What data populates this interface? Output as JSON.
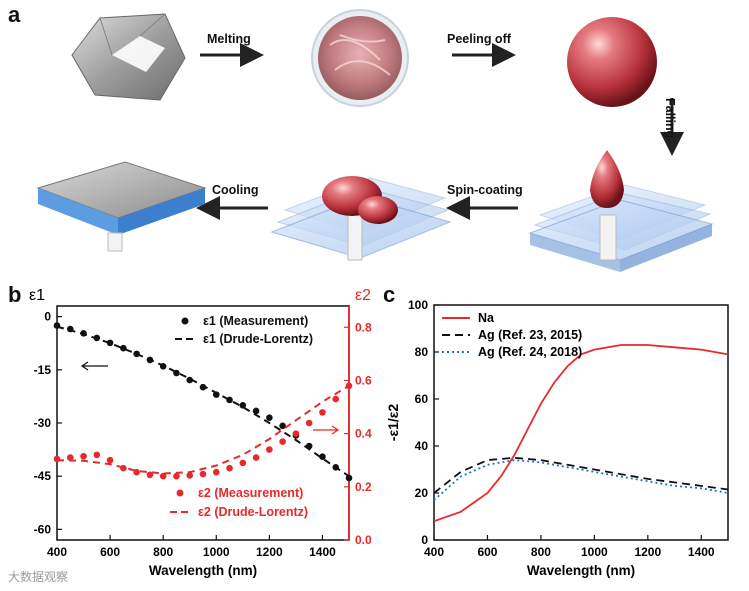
{
  "panels": {
    "a": "a",
    "b": "b",
    "c": "c"
  },
  "process_steps": [
    "Melting",
    "Peeling off",
    "Falling",
    "Spin-coating",
    "Cooling"
  ],
  "colors": {
    "sodium_red": "#e8292b",
    "black": "#111111",
    "blue_dotted": "#1f6fd1",
    "glass": "#a9c8ee"
  },
  "chart_data": [
    {
      "type": "line",
      "panel": "b",
      "xlabel": "Wavelength (nm)",
      "xlim": [
        400,
        1500
      ],
      "xticks": [
        400,
        600,
        800,
        1000,
        1200,
        1400
      ],
      "left_axis": {
        "label": "ε1",
        "ylim": [
          -63,
          3
        ],
        "ticks": [
          0,
          -15,
          -30,
          -45,
          -60
        ],
        "tick_labels": [
          "0",
          "-15",
          "-30",
          "-45",
          "-60"
        ]
      },
      "right_axis": {
        "label": "ε2",
        "ylim": [
          0,
          0.88
        ],
        "ticks": [
          0.0,
          0.2,
          0.4,
          0.6,
          0.8
        ],
        "tick_labels": [
          "0.0",
          "0.2",
          "0.4",
          "0.6",
          "0.8"
        ],
        "color": "#e8292b"
      },
      "series": [
        {
          "name": "ε1 (Measurement)",
          "axis": "left",
          "style": "dots",
          "color": "#111111",
          "x": [
            400,
            450,
            500,
            550,
            600,
            650,
            700,
            750,
            800,
            850,
            900,
            950,
            1000,
            1050,
            1100,
            1150,
            1200,
            1250,
            1300,
            1350,
            1400,
            1450,
            1500
          ],
          "y": [
            -2.5,
            -3.5,
            -4.7,
            -6.0,
            -7.4,
            -8.9,
            -10.5,
            -12.2,
            -14.0,
            -15.9,
            -17.9,
            -19.9,
            -22.0,
            -23.5,
            -25.0,
            -26.6,
            -28.5,
            -30.8,
            -33.5,
            -36.5,
            -39.5,
            -42.5,
            -45.5
          ]
        },
        {
          "name": "ε1 (Drude-Lorentz)",
          "axis": "left",
          "style": "dashed",
          "color": "#111111",
          "x": [
            400,
            500,
            600,
            700,
            800,
            900,
            1000,
            1100,
            1200,
            1300,
            1400,
            1500
          ],
          "y": [
            -2.8,
            -4.9,
            -7.5,
            -10.5,
            -13.8,
            -17.5,
            -21.5,
            -25.5,
            -30.0,
            -34.8,
            -40.0,
            -45.0
          ]
        },
        {
          "name": "ε2 (Measurement)",
          "axis": "right",
          "style": "dots",
          "color": "#e8292b",
          "x": [
            400,
            450,
            500,
            550,
            600,
            650,
            700,
            750,
            800,
            850,
            900,
            950,
            1000,
            1050,
            1100,
            1150,
            1200,
            1250,
            1300,
            1350,
            1400,
            1450,
            1500
          ],
          "y": [
            0.305,
            0.31,
            0.315,
            0.32,
            0.3,
            0.27,
            0.255,
            0.245,
            0.24,
            0.24,
            0.243,
            0.248,
            0.255,
            0.27,
            0.29,
            0.31,
            0.34,
            0.37,
            0.4,
            0.44,
            0.48,
            0.53,
            0.58
          ]
        },
        {
          "name": "ε2 (Drude-Lorentz)",
          "axis": "right",
          "style": "dashed",
          "color": "#e8292b",
          "x": [
            400,
            500,
            600,
            700,
            800,
            900,
            1000,
            1100,
            1200,
            1300,
            1400,
            1500
          ],
          "y": [
            0.3,
            0.298,
            0.285,
            0.26,
            0.25,
            0.255,
            0.28,
            0.32,
            0.38,
            0.45,
            0.52,
            0.58
          ]
        }
      ],
      "legend": [
        "ε1 (Measurement)",
        "ε1 (Drude-Lorentz)",
        "ε2 (Measurement)",
        "ε2 (Drude-Lorentz)"
      ]
    },
    {
      "type": "line",
      "panel": "c",
      "xlabel": "Wavelength (nm)",
      "ylabel": "-ε1/ε2",
      "xlim": [
        400,
        1500
      ],
      "ylim": [
        0,
        100
      ],
      "xticks": [
        400,
        600,
        800,
        1000,
        1200,
        1400
      ],
      "yticks": [
        0,
        20,
        40,
        60,
        80,
        100
      ],
      "series": [
        {
          "name": "Na",
          "style": "solid",
          "color": "#e8292b",
          "x": [
            400,
            500,
            600,
            650,
            700,
            750,
            800,
            850,
            900,
            950,
            1000,
            1100,
            1200,
            1300,
            1400,
            1500
          ],
          "y": [
            8,
            12,
            20,
            27,
            36,
            47,
            58,
            67,
            74,
            79,
            81,
            83,
            83,
            82,
            81,
            79
          ]
        },
        {
          "name": "Ag (Ref. 23, 2015)",
          "style": "dashed",
          "color": "#111111",
          "x": [
            400,
            500,
            600,
            700,
            800,
            900,
            1000,
            1100,
            1200,
            1300,
            1400,
            1500
          ],
          "y": [
            20,
            29,
            34,
            35,
            34,
            32,
            30,
            28,
            26,
            24.5,
            23,
            21.5
          ]
        },
        {
          "name": "Ag (Ref. 24, 2018)",
          "style": "dotted",
          "color": "#1f6fd1",
          "x": [
            400,
            500,
            600,
            700,
            800,
            900,
            1000,
            1100,
            1200,
            1300,
            1400,
            1500
          ],
          "y": [
            17,
            27,
            32,
            34,
            33,
            31,
            29,
            27,
            25,
            23,
            22,
            20
          ]
        }
      ],
      "legend": [
        "Na",
        "Ag (Ref. 23, 2015)",
        "Ag (Ref. 24, 2018)"
      ]
    }
  ],
  "watermark": "大数据观察"
}
